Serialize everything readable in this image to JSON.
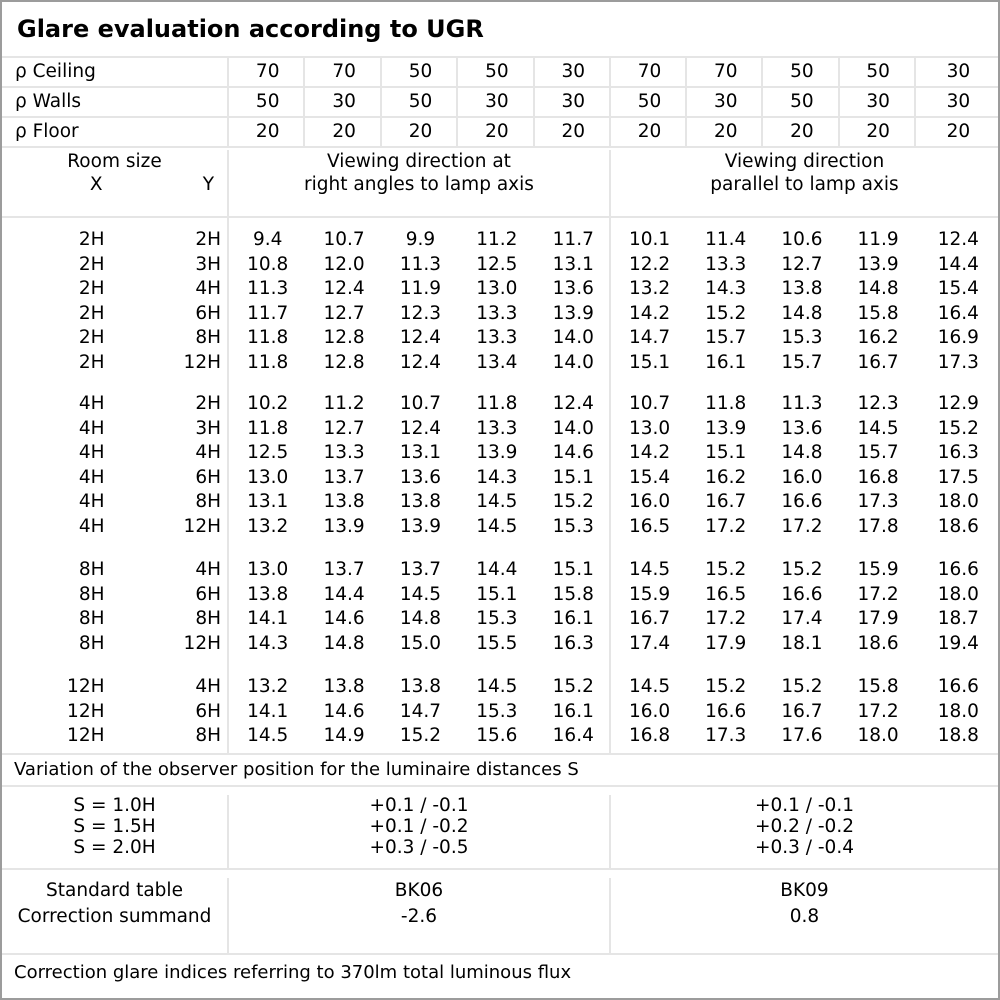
{
  "title": "Glare evaluation according to UGR",
  "reflectance_rows": [
    {
      "label": "ρ Ceiling",
      "values": [
        "70",
        "70",
        "50",
        "50",
        "30",
        "70",
        "70",
        "50",
        "50",
        "30"
      ]
    },
    {
      "label": "ρ Walls",
      "values": [
        "50",
        "30",
        "50",
        "30",
        "30",
        "50",
        "30",
        "50",
        "30",
        "30"
      ]
    },
    {
      "label": "ρ Floor",
      "values": [
        "20",
        "20",
        "20",
        "20",
        "20",
        "20",
        "20",
        "20",
        "20",
        "20"
      ]
    }
  ],
  "room_size": {
    "label": "Room size",
    "x_label": "X",
    "y_label": "Y"
  },
  "group_headers": {
    "left_line1": "Viewing direction at",
    "left_line2": "right angles to lamp axis",
    "right_line1": "Viewing direction",
    "right_line2": "parallel to lamp axis"
  },
  "ugr_groups": [
    {
      "rows": [
        {
          "x": "2H",
          "y": "2H",
          "values": [
            "9.4",
            "10.7",
            "9.9",
            "11.2",
            "11.7",
            "10.1",
            "11.4",
            "10.6",
            "11.9",
            "12.4"
          ]
        },
        {
          "x": "2H",
          "y": "3H",
          "values": [
            "10.8",
            "12.0",
            "11.3",
            "12.5",
            "13.1",
            "12.2",
            "13.3",
            "12.7",
            "13.9",
            "14.4"
          ]
        },
        {
          "x": "2H",
          "y": "4H",
          "values": [
            "11.3",
            "12.4",
            "11.9",
            "13.0",
            "13.6",
            "13.2",
            "14.3",
            "13.8",
            "14.8",
            "15.4"
          ]
        },
        {
          "x": "2H",
          "y": "6H",
          "values": [
            "11.7",
            "12.7",
            "12.3",
            "13.3",
            "13.9",
            "14.2",
            "15.2",
            "14.8",
            "15.8",
            "16.4"
          ]
        },
        {
          "x": "2H",
          "y": "8H",
          "values": [
            "11.8",
            "12.8",
            "12.4",
            "13.3",
            "14.0",
            "14.7",
            "15.7",
            "15.3",
            "16.2",
            "16.9"
          ]
        },
        {
          "x": "2H",
          "y": "12H",
          "values": [
            "11.8",
            "12.8",
            "12.4",
            "13.4",
            "14.0",
            "15.1",
            "16.1",
            "15.7",
            "16.7",
            "17.3"
          ]
        }
      ]
    },
    {
      "rows": [
        {
          "x": "4H",
          "y": "2H",
          "values": [
            "10.2",
            "11.2",
            "10.7",
            "11.8",
            "12.4",
            "10.7",
            "11.8",
            "11.3",
            "12.3",
            "12.9"
          ]
        },
        {
          "x": "4H",
          "y": "3H",
          "values": [
            "11.8",
            "12.7",
            "12.4",
            "13.3",
            "14.0",
            "13.0",
            "13.9",
            "13.6",
            "14.5",
            "15.2"
          ]
        },
        {
          "x": "4H",
          "y": "4H",
          "values": [
            "12.5",
            "13.3",
            "13.1",
            "13.9",
            "14.6",
            "14.2",
            "15.1",
            "14.8",
            "15.7",
            "16.3"
          ]
        },
        {
          "x": "4H",
          "y": "6H",
          "values": [
            "13.0",
            "13.7",
            "13.6",
            "14.3",
            "15.1",
            "15.4",
            "16.2",
            "16.0",
            "16.8",
            "17.5"
          ]
        },
        {
          "x": "4H",
          "y": "8H",
          "values": [
            "13.1",
            "13.8",
            "13.8",
            "14.5",
            "15.2",
            "16.0",
            "16.7",
            "16.6",
            "17.3",
            "18.0"
          ]
        },
        {
          "x": "4H",
          "y": "12H",
          "values": [
            "13.2",
            "13.9",
            "13.9",
            "14.5",
            "15.3",
            "16.5",
            "17.2",
            "17.2",
            "17.8",
            "18.6"
          ]
        }
      ]
    },
    {
      "rows": [
        {
          "x": "8H",
          "y": "4H",
          "values": [
            "13.0",
            "13.7",
            "13.7",
            "14.4",
            "15.1",
            "14.5",
            "15.2",
            "15.2",
            "15.9",
            "16.6"
          ]
        },
        {
          "x": "8H",
          "y": "6H",
          "values": [
            "13.8",
            "14.4",
            "14.5",
            "15.1",
            "15.8",
            "15.9",
            "16.5",
            "16.6",
            "17.2",
            "18.0"
          ]
        },
        {
          "x": "8H",
          "y": "8H",
          "values": [
            "14.1",
            "14.6",
            "14.8",
            "15.3",
            "16.1",
            "16.7",
            "17.2",
            "17.4",
            "17.9",
            "18.7"
          ]
        },
        {
          "x": "8H",
          "y": "12H",
          "values": [
            "14.3",
            "14.8",
            "15.0",
            "15.5",
            "16.3",
            "17.4",
            "17.9",
            "18.1",
            "18.6",
            "19.4"
          ]
        }
      ]
    },
    {
      "rows": [
        {
          "x": "12H",
          "y": "4H",
          "values": [
            "13.2",
            "13.8",
            "13.8",
            "14.5",
            "15.2",
            "14.5",
            "15.2",
            "15.2",
            "15.8",
            "16.6"
          ]
        },
        {
          "x": "12H",
          "y": "6H",
          "values": [
            "14.1",
            "14.6",
            "14.7",
            "15.3",
            "16.1",
            "16.0",
            "16.6",
            "16.7",
            "17.2",
            "18.0"
          ]
        },
        {
          "x": "12H",
          "y": "8H",
          "values": [
            "14.5",
            "14.9",
            "15.2",
            "15.6",
            "16.4",
            "16.8",
            "17.3",
            "17.6",
            "18.0",
            "18.8"
          ]
        }
      ]
    }
  ],
  "variation_note": "Variation of the observer position for the luminaire distances S",
  "spacing_rows": [
    {
      "label": "S = 1.0H",
      "left": "+0.1 / -0.1",
      "right": "+0.1 / -0.1"
    },
    {
      "label": "S = 1.5H",
      "left": "+0.1 / -0.2",
      "right": "+0.2 / -0.2"
    },
    {
      "label": "S = 2.0H",
      "left": "+0.3 / -0.5",
      "right": "+0.3 / -0.4"
    }
  ],
  "standard": {
    "label_line1": "Standard table",
    "label_line2": "Correction summand",
    "left_line1": "BK06",
    "left_line2": "-2.6",
    "right_line1": "BK09",
    "right_line2": "0.8"
  },
  "footer_note": "Correction glare indices referring to 370lm total luminous flux"
}
